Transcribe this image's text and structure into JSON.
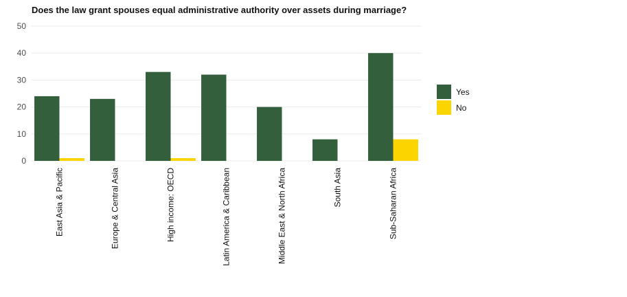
{
  "chart_data": {
    "type": "bar",
    "title": "Does the law grant spouses equal administrative authority over assets during marriage?",
    "xlabel": "",
    "ylabel": "",
    "ylim": [
      0,
      50
    ],
    "yticks": [
      "0",
      "10",
      "20",
      "30",
      "40",
      "50"
    ],
    "grid": true,
    "legend_position": "right",
    "categories": [
      "East Asia & Pacific",
      "Europe & Central Asia",
      "High income: OECD",
      "Latin America & Caribbean",
      "Middle East & North Africa",
      "South Asia",
      "Sub-Saharan Africa"
    ],
    "series": [
      {
        "name": "Yes",
        "color": "#335f3c",
        "values": [
          24,
          23,
          33,
          32,
          20,
          8,
          40
        ]
      },
      {
        "name": "No",
        "color": "#fcd500",
        "values": [
          1,
          0,
          1,
          0,
          0,
          0,
          8
        ]
      }
    ]
  }
}
